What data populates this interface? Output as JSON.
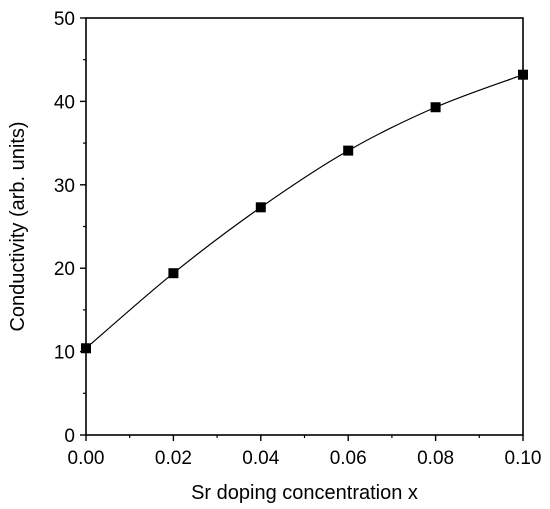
{
  "chart_data": {
    "type": "line",
    "title": "",
    "xlabel": "Sr doping concentration x",
    "ylabel": "Conductivity (arb. units)",
    "xlim": [
      0.0,
      0.1
    ],
    "ylim": [
      0,
      50
    ],
    "x_ticks": [
      "0.00",
      "0.02",
      "0.04",
      "0.06",
      "0.08",
      "0.10"
    ],
    "y_ticks": [
      "0",
      "10",
      "20",
      "30",
      "40",
      "50"
    ],
    "grid": false,
    "legend": "none",
    "marker": "square",
    "color": "#000000",
    "series": [
      {
        "x": [
          0.0,
          0.02,
          0.04,
          0.06,
          0.08,
          0.1
        ],
        "y": [
          10.4,
          19.4,
          27.3,
          34.1,
          39.3,
          43.2
        ]
      }
    ]
  }
}
